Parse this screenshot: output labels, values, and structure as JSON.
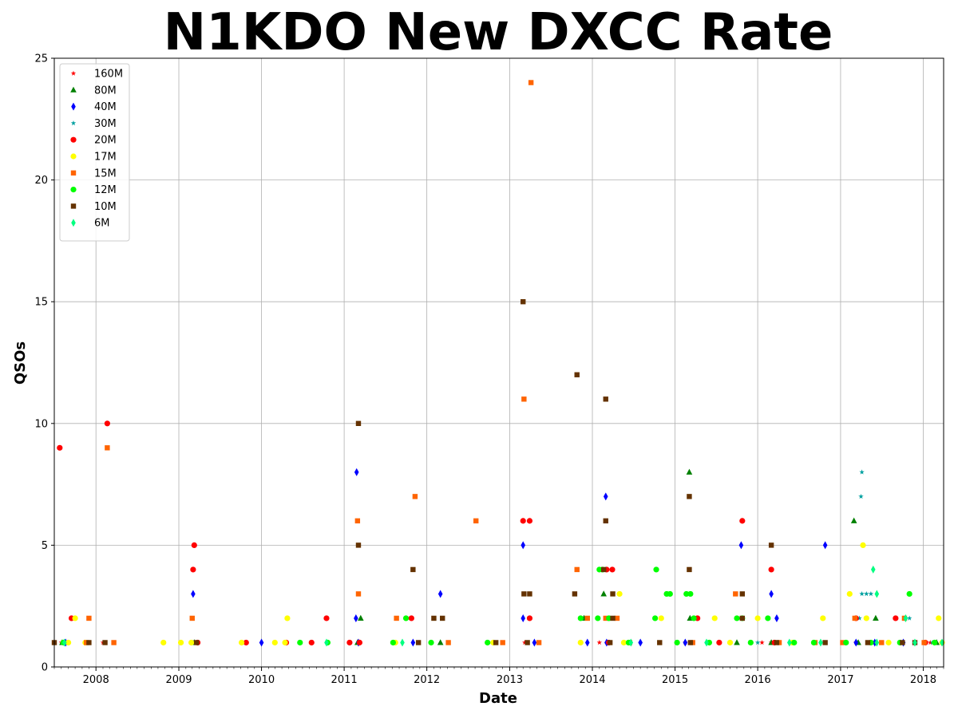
{
  "chart_data": {
    "type": "scatter",
    "title": "N1KDO New DXCC Rate",
    "xlabel": "Date",
    "ylabel": "QSOs",
    "xlim": [
      "2007-07-01",
      "2018-04-01"
    ],
    "ylim": [
      0,
      25
    ],
    "x_ticks": [
      "2008",
      "2009",
      "2010",
      "2011",
      "2012",
      "2013",
      "2014",
      "2015",
      "2016",
      "2017",
      "2018"
    ],
    "y_ticks": [
      0,
      5,
      10,
      15,
      20,
      25
    ],
    "grid": true,
    "legend_position": "top-left",
    "series": [
      {
        "name": "160M",
        "color": "#ff0000",
        "marker": "star",
        "points": [
          [
            "2007-08-01",
            1
          ],
          [
            "2008-02-01",
            1
          ],
          [
            "2009-03-05",
            1
          ],
          [
            "2011-03-10",
            1
          ],
          [
            "2013-03-08",
            1
          ],
          [
            "2014-02-01",
            1
          ],
          [
            "2014-03-10",
            1
          ],
          [
            "2015-02-15",
            1
          ],
          [
            "2016-01-20",
            1
          ],
          [
            "2016-03-01",
            1
          ],
          [
            "2017-03-10",
            1
          ],
          [
            "2017-10-01",
            1
          ],
          [
            "2018-02-01",
            1
          ]
        ]
      },
      {
        "name": "80M",
        "color": "#008000",
        "marker": "triangle",
        "points": [
          [
            "2007-08-05",
            1
          ],
          [
            "2009-03-10",
            1
          ],
          [
            "2011-03-15",
            2
          ],
          [
            "2011-03-01",
            1
          ],
          [
            "2012-03-01",
            1
          ],
          [
            "2013-11-25",
            2
          ],
          [
            "2014-02-20",
            3
          ],
          [
            "2015-03-05",
            8
          ],
          [
            "2015-03-08",
            2
          ],
          [
            "2015-10-01",
            1
          ],
          [
            "2016-03-01",
            1
          ],
          [
            "2017-03-01",
            6
          ],
          [
            "2017-06-05",
            2
          ],
          [
            "2017-03-20",
            1
          ],
          [
            "2018-03-01",
            1
          ]
        ]
      },
      {
        "name": "40M",
        "color": "#0000ff",
        "marker": "diamond",
        "points": [
          [
            "2007-08-20",
            1
          ],
          [
            "2009-03-05",
            3
          ],
          [
            "2010-01-01",
            1
          ],
          [
            "2011-02-25",
            8
          ],
          [
            "2011-02-22",
            2
          ],
          [
            "2011-03-05",
            1
          ],
          [
            "2011-11-01",
            1
          ],
          [
            "2012-03-01",
            3
          ],
          [
            "2013-03-01",
            5
          ],
          [
            "2013-03-01",
            2
          ],
          [
            "2013-04-20",
            1
          ],
          [
            "2013-12-10",
            1
          ],
          [
            "2014-03-01",
            7
          ],
          [
            "2014-03-05",
            1
          ],
          [
            "2014-08-01",
            1
          ],
          [
            "2015-02-15",
            1
          ],
          [
            "2015-10-20",
            5
          ],
          [
            "2016-03-01",
            3
          ],
          [
            "2016-03-25",
            2
          ],
          [
            "2016-10-25",
            5
          ],
          [
            "2017-03-10",
            1
          ],
          [
            "2017-06-01",
            1
          ],
          [
            "2017-10-05",
            1
          ]
        ]
      },
      {
        "name": "30M",
        "color": "#00a0a0",
        "marker": "star",
        "points": [
          [
            "2017-04-05",
            8
          ],
          [
            "2017-04-01",
            7
          ],
          [
            "2017-04-05",
            3
          ],
          [
            "2017-04-25",
            3
          ],
          [
            "2017-05-15",
            3
          ],
          [
            "2017-03-25",
            2
          ],
          [
            "2017-11-01",
            2
          ],
          [
            "2018-02-10",
            1
          ],
          [
            "2016-01-01",
            1
          ]
        ]
      },
      {
        "name": "20M",
        "color": "#ff0000",
        "marker": "circle",
        "points": [
          [
            "2007-07-25",
            9
          ],
          [
            "2007-09-15",
            2
          ],
          [
            "2008-02-20",
            10
          ],
          [
            "2009-03-10",
            5
          ],
          [
            "2009-03-05",
            4
          ],
          [
            "2009-03-25",
            1
          ],
          [
            "2009-10-25",
            1
          ],
          [
            "2010-04-20",
            1
          ],
          [
            "2010-08-10",
            1
          ],
          [
            "2010-10-15",
            2
          ],
          [
            "2011-01-25",
            1
          ],
          [
            "2011-03-10",
            1
          ],
          [
            "2011-10-25",
            2
          ],
          [
            "2013-03-01",
            6
          ],
          [
            "2013-03-30",
            6
          ],
          [
            "2013-03-30",
            2
          ],
          [
            "2014-03-05",
            4
          ],
          [
            "2014-03-30",
            4
          ],
          [
            "2014-03-15",
            1
          ],
          [
            "2015-04-10",
            2
          ],
          [
            "2015-07-15",
            1
          ],
          [
            "2015-10-25",
            6
          ],
          [
            "2016-03-01",
            4
          ],
          [
            "2016-03-15",
            1
          ],
          [
            "2017-03-10",
            2
          ],
          [
            "2017-09-01",
            2
          ],
          [
            "2018-01-10",
            1
          ]
        ]
      },
      {
        "name": "17M",
        "color": "#ffff00",
        "marker": "circle",
        "points": [
          [
            "2007-09-01",
            1
          ],
          [
            "2007-10-01",
            2
          ],
          [
            "2007-11-15",
            1
          ],
          [
            "2008-10-25",
            1
          ],
          [
            "2009-01-10",
            1
          ],
          [
            "2009-02-25",
            1
          ],
          [
            "2009-10-05",
            1
          ],
          [
            "2010-03-01",
            1
          ],
          [
            "2010-04-25",
            2
          ],
          [
            "2010-04-15",
            1
          ],
          [
            "2011-08-15",
            1
          ],
          [
            "2012-10-20",
            1
          ],
          [
            "2013-11-10",
            1
          ],
          [
            "2014-05-01",
            3
          ],
          [
            "2014-05-20",
            1
          ],
          [
            "2014-11-01",
            2
          ],
          [
            "2015-06-25",
            2
          ],
          [
            "2015-09-01",
            1
          ],
          [
            "2016-01-01",
            2
          ],
          [
            "2016-06-01",
            1
          ],
          [
            "2016-10-15",
            2
          ],
          [
            "2017-02-10",
            3
          ],
          [
            "2017-04-10",
            5
          ],
          [
            "2017-04-25",
            2
          ],
          [
            "2017-08-01",
            1
          ],
          [
            "2018-03-10",
            2
          ],
          [
            "2018-03-25",
            1
          ]
        ]
      },
      {
        "name": "15M",
        "color": "#ff6400",
        "marker": "square",
        "points": [
          [
            "2007-12-01",
            2
          ],
          [
            "2007-11-20",
            1
          ],
          [
            "2008-02-20",
            9
          ],
          [
            "2008-03-20",
            1
          ],
          [
            "2009-03-01",
            2
          ],
          [
            "2011-03-01",
            6
          ],
          [
            "2011-03-05",
            3
          ],
          [
            "2011-08-20",
            2
          ],
          [
            "2011-11-10",
            7
          ],
          [
            "2012-04-05",
            1
          ],
          [
            "2012-08-05",
            6
          ],
          [
            "2012-12-01",
            1
          ],
          [
            "2013-03-05",
            11
          ],
          [
            "2013-04-05",
            24
          ],
          [
            "2013-05-10",
            1
          ],
          [
            "2013-10-25",
            4
          ],
          [
            "2013-12-10",
            2
          ],
          [
            "2014-03-01",
            2
          ],
          [
            "2014-04-20",
            2
          ],
          [
            "2014-06-15",
            1
          ],
          [
            "2015-03-20",
            1
          ],
          [
            "2015-09-25",
            3
          ],
          [
            "2016-04-05",
            1
          ],
          [
            "2016-09-10",
            1
          ],
          [
            "2017-01-10",
            1
          ],
          [
            "2017-03-05",
            2
          ],
          [
            "2017-07-01",
            1
          ],
          [
            "2017-10-10",
            2
          ],
          [
            "2018-01-05",
            1
          ]
        ]
      },
      {
        "name": "12M",
        "color": "#00ff00",
        "marker": "circle",
        "points": [
          [
            "2007-08-10",
            1
          ],
          [
            "2010-06-20",
            1
          ],
          [
            "2010-10-20",
            1
          ],
          [
            "2011-08-05",
            1
          ],
          [
            "2011-10-01",
            2
          ],
          [
            "2012-01-20",
            1
          ],
          [
            "2012-09-25",
            1
          ],
          [
            "2013-11-10",
            2
          ],
          [
            "2014-01-25",
            2
          ],
          [
            "2014-02-01",
            4
          ],
          [
            "2014-02-15",
            4
          ],
          [
            "2014-03-15",
            2
          ],
          [
            "2014-06-10",
            1
          ],
          [
            "2014-10-10",
            4
          ],
          [
            "2014-10-05",
            2
          ],
          [
            "2014-11-25",
            3
          ],
          [
            "2014-12-10",
            3
          ],
          [
            "2015-01-10",
            1
          ],
          [
            "2015-02-20",
            3
          ],
          [
            "2015-03-10",
            3
          ],
          [
            "2015-03-25",
            2
          ],
          [
            "2015-06-01",
            1
          ],
          [
            "2015-10-01",
            2
          ],
          [
            "2015-10-25",
            2
          ],
          [
            "2015-12-01",
            1
          ],
          [
            "2016-02-15",
            2
          ],
          [
            "2016-06-10",
            1
          ],
          [
            "2016-09-05",
            1
          ],
          [
            "2017-01-25",
            1
          ],
          [
            "2017-05-15",
            1
          ],
          [
            "2017-09-20",
            1
          ],
          [
            "2017-11-01",
            3
          ],
          [
            "2018-02-20",
            1
          ]
        ]
      },
      {
        "name": "10M",
        "color": "#643200",
        "marker": "square",
        "points": [
          [
            "2007-07-01",
            1
          ],
          [
            "2007-12-01",
            1
          ],
          [
            "2008-02-10",
            1
          ],
          [
            "2009-03-20",
            1
          ],
          [
            "2011-03-05",
            10
          ],
          [
            "2011-03-05",
            5
          ],
          [
            "2011-11-01",
            4
          ],
          [
            "2011-11-25",
            1
          ],
          [
            "2012-02-01",
            2
          ],
          [
            "2012-03-10",
            2
          ],
          [
            "2012-11-01",
            1
          ],
          [
            "2013-03-01",
            15
          ],
          [
            "2013-03-05",
            3
          ],
          [
            "2013-03-30",
            3
          ],
          [
            "2013-03-20",
            1
          ],
          [
            "2013-10-25",
            12
          ],
          [
            "2013-10-15",
            3
          ],
          [
            "2014-03-01",
            11
          ],
          [
            "2014-03-01",
            6
          ],
          [
            "2014-02-20",
            4
          ],
          [
            "2014-04-01",
            3
          ],
          [
            "2014-04-01",
            2
          ],
          [
            "2014-03-20",
            1
          ],
          [
            "2014-10-25",
            1
          ],
          [
            "2015-03-05",
            7
          ],
          [
            "2015-03-05",
            4
          ],
          [
            "2015-03-10",
            1
          ],
          [
            "2015-10-25",
            3
          ],
          [
            "2015-10-25",
            2
          ],
          [
            "2016-03-01",
            5
          ],
          [
            "2016-03-25",
            1
          ],
          [
            "2016-10-25",
            1
          ],
          [
            "2017-05-01",
            1
          ],
          [
            "2017-10-01",
            1
          ],
          [
            "2017-11-25",
            1
          ]
        ]
      },
      {
        "name": "6M",
        "color": "#00ff80",
        "marker": "diamond",
        "points": [
          [
            "2007-08-15",
            1
          ],
          [
            "2010-10-15",
            1
          ],
          [
            "2011-09-15",
            1
          ],
          [
            "2014-06-20",
            1
          ],
          [
            "2015-05-20",
            1
          ],
          [
            "2016-05-20",
            1
          ],
          [
            "2016-10-05",
            1
          ],
          [
            "2017-05-25",
            4
          ],
          [
            "2017-06-10",
            3
          ],
          [
            "2017-06-10",
            1
          ],
          [
            "2017-10-15",
            2
          ],
          [
            "2017-11-25",
            1
          ],
          [
            "2018-03-25",
            1
          ]
        ]
      }
    ]
  }
}
